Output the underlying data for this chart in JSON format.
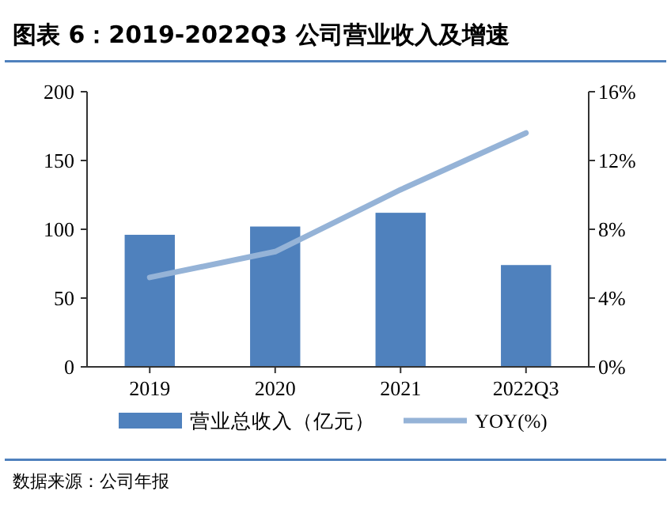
{
  "chart_data": {
    "type": "bar",
    "title": "图表 6：2019-2022Q3  公司营业收入及增速",
    "categories": [
      "2019",
      "2020",
      "2021",
      "2022Q3"
    ],
    "series": [
      {
        "name": "营业总收入（亿元）",
        "color": "#4f81bd",
        "values": [
          96,
          102,
          112,
          74
        ]
      },
      {
        "name": "YOY(%)",
        "type": "line",
        "axis": "y2",
        "color": "#95b3d7",
        "values": [
          5.2,
          6.7,
          10.3,
          13.6
        ]
      }
    ],
    "ylim": [
      0,
      200
    ],
    "yticks": [
      0,
      50,
      100,
      150,
      200
    ],
    "y2lim": [
      0,
      16
    ],
    "y2ticks": [
      {
        "value": 0,
        "label": "0%"
      },
      {
        "value": 4,
        "label": "4%"
      },
      {
        "value": 8,
        "label": "8%"
      },
      {
        "value": 12,
        "label": "12%"
      },
      {
        "value": 16,
        "label": "16%"
      }
    ],
    "legend": "bottom",
    "marker": "none",
    "line_style": "solid",
    "grid": false,
    "annotations": [
      "数据来源：公司年报"
    ]
  }
}
